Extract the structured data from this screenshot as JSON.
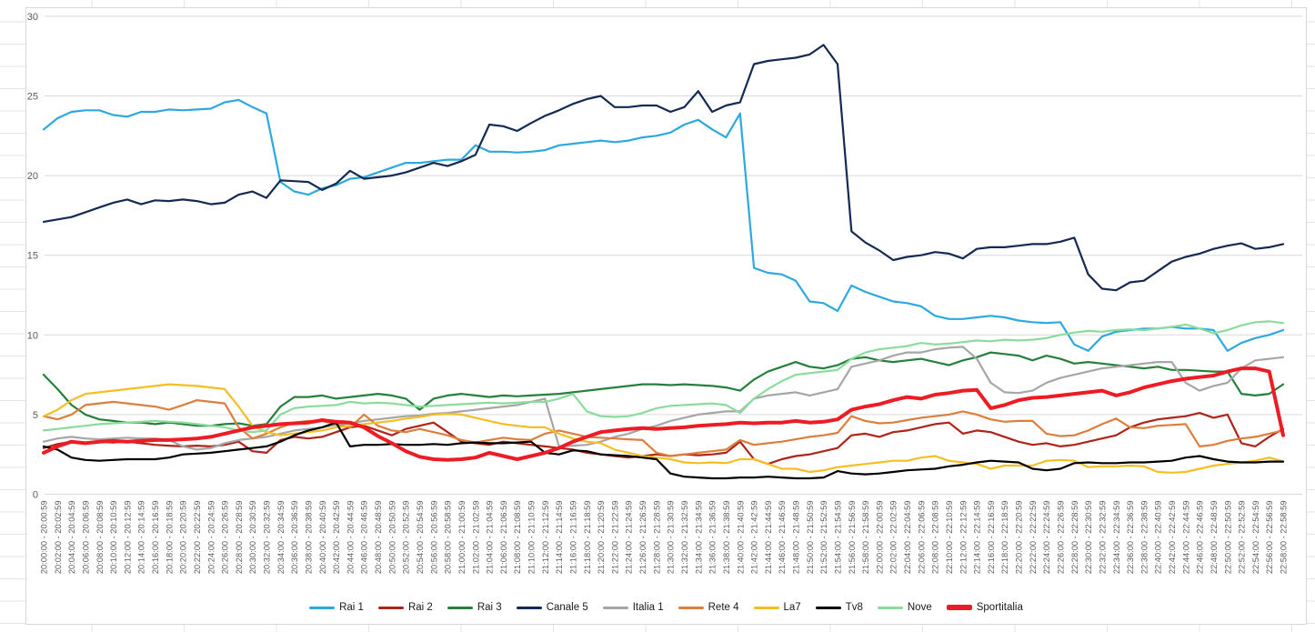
{
  "chart_data": {
    "type": "line",
    "title": "",
    "xlabel": "",
    "ylabel": "",
    "grid": "horizontal",
    "legend_position": "bottom",
    "y_axis": {
      "min": 0,
      "max": 30,
      "step": 5,
      "ticks": [
        "0",
        "5",
        "10",
        "15",
        "20",
        "25",
        "30"
      ]
    },
    "categories": [
      "20:00:00 - 20:00:59",
      "20:02:00 - 20:02:59",
      "20:04:00 - 20:04:59",
      "20:06:00 - 20:06:59",
      "20:08:00 - 20:08:59",
      "20:10:00 - 20:10:59",
      "20:12:00 - 20:12:59",
      "20:14:00 - 20:14:59",
      "20:16:00 - 20:16:59",
      "20:18:00 - 20:18:59",
      "20:20:00 - 20:20:59",
      "20:22:00 - 20:22:59",
      "20:24:00 - 20:24:59",
      "20:26:00 - 20:26:59",
      "20:28:00 - 20:28:59",
      "20:30:00 - 20:30:59",
      "20:32:00 - 20:32:59",
      "20:34:00 - 20:34:59",
      "20:36:00 - 20:36:59",
      "20:38:00 - 20:38:59",
      "20:40:00 - 20:40:59",
      "20:42:00 - 20:42:59",
      "20:44:00 - 20:44:59",
      "20:46:00 - 20:46:59",
      "20:48:00 - 20:48:59",
      "20:50:00 - 20:50:59",
      "20:52:00 - 20:52:59",
      "20:54:00 - 20:54:59",
      "20:56:00 - 20:56:59",
      "20:58:00 - 20:58:59",
      "21:00:00 - 21:00:59",
      "21:02:00 - 21:02:59",
      "21:04:00 - 21:04:59",
      "21:06:00 - 21:06:59",
      "21:08:00 - 21:08:59",
      "21:10:00 - 21:10:59",
      "21:12:00 - 21:12:59",
      "21:14:00 - 21:14:59",
      "21:16:00 - 21:16:59",
      "21:18:00 - 21:18:59",
      "21:20:00 - 21:20:59",
      "21:22:00 - 21:22:59",
      "21:24:00 - 21:24:59",
      "21:26:00 - 21:26:59",
      "21:28:00 - 21:28:59",
      "21:30:00 - 21:30:59",
      "21:32:00 - 21:32:59",
      "21:34:00 - 21:34:59",
      "21:36:00 - 21:36:59",
      "21:38:00 - 21:38:59",
      "21:40:00 - 21:40:59",
      "21:42:00 - 21:42:59",
      "21:44:00 - 21:44:59",
      "21:46:00 - 21:46:59",
      "21:48:00 - 21:48:59",
      "21:50:00 - 21:50:59",
      "21:52:00 - 21:52:59",
      "21:54:00 - 21:54:59",
      "21:56:00 - 21:56:59",
      "21:58:00 - 21:58:59",
      "22:00:00 - 22:00:59",
      "22:02:00 - 22:02:59",
      "22:04:00 - 22:04:59",
      "22:06:00 - 22:06:59",
      "22:08:00 - 22:08:59",
      "22:10:00 - 22:10:59",
      "22:12:00 - 22:12:59",
      "22:14:00 - 22:14:59",
      "22:16:00 - 22:16:59",
      "22:18:00 - 22:18:59",
      "22:20:00 - 22:20:59",
      "22:22:00 - 22:22:59",
      "22:24:00 - 22:24:59",
      "22:26:00 - 22:26:59",
      "22:28:00 - 22:28:59",
      "22:30:00 - 22:30:59",
      "22:32:00 - 22:32:59",
      "22:34:00 - 22:34:59",
      "22:36:00 - 22:36:59",
      "22:38:00 - 22:38:59",
      "22:40:00 - 22:40:59",
      "22:42:00 - 22:42:59",
      "22:44:00 - 22:44:59",
      "22:46:00 - 22:46:59",
      "22:48:00 - 22:48:59",
      "22:50:00 - 22:50:59",
      "22:52:00 - 22:52:59",
      "22:54:00 - 22:54:59",
      "22:56:00 - 22:56:59",
      "22:58:00 - 22:58:59"
    ],
    "series": [
      {
        "name": "Rai 1",
        "color": "#2DA8E0",
        "thick": false,
        "values": [
          22.9,
          23.6,
          24.0,
          24.1,
          24.1,
          23.8,
          23.7,
          24.0,
          24.0,
          24.15,
          24.1,
          24.15,
          24.2,
          24.6,
          24.75,
          24.3,
          23.9,
          19.6,
          19.0,
          18.8,
          19.2,
          19.4,
          19.8,
          19.9,
          20.2,
          20.5,
          20.8,
          20.8,
          20.9,
          21.0,
          21.0,
          21.9,
          21.5,
          21.5,
          21.45,
          21.5,
          21.6,
          21.9,
          22.0,
          22.1,
          22.2,
          22.1,
          22.2,
          22.4,
          22.5,
          22.7,
          23.2,
          23.5,
          22.9,
          22.4,
          23.9,
          14.2,
          13.9,
          13.8,
          13.4,
          12.1,
          12.0,
          11.5,
          13.1,
          12.7,
          12.4,
          12.1,
          12.0,
          11.8,
          11.2,
          11.0,
          11.0,
          11.1,
          11.2,
          11.1,
          10.9,
          10.8,
          10.75,
          10.8,
          9.4,
          9.0,
          9.9,
          10.2,
          10.3,
          10.4,
          10.4,
          10.5,
          10.4,
          10.4,
          10.3,
          9.0,
          9.5,
          9.8,
          10.0,
          10.3
        ]
      },
      {
        "name": "Rai 2",
        "color": "#AF2318",
        "thick": false,
        "values": [
          2.9,
          3.15,
          3.3,
          3.25,
          3.3,
          3.25,
          3.3,
          3.2,
          3.1,
          3.05,
          3.0,
          3.05,
          3.0,
          3.1,
          3.3,
          2.7,
          2.6,
          3.4,
          3.6,
          3.5,
          3.6,
          3.9,
          4.2,
          4.3,
          4.0,
          3.7,
          4.1,
          4.3,
          4.5,
          3.9,
          3.3,
          3.2,
          3.1,
          3.3,
          3.2,
          3.1,
          3.0,
          2.9,
          2.8,
          2.6,
          2.5,
          2.4,
          2.3,
          2.4,
          2.5,
          2.4,
          2.5,
          2.45,
          2.5,
          2.6,
          3.3,
          2.2,
          1.9,
          2.2,
          2.4,
          2.5,
          2.7,
          2.9,
          3.7,
          3.8,
          3.6,
          3.9,
          4.0,
          4.2,
          4.4,
          4.5,
          3.8,
          4.0,
          3.9,
          3.6,
          3.3,
          3.1,
          3.2,
          3.0,
          3.1,
          3.3,
          3.5,
          3.7,
          4.2,
          4.5,
          4.7,
          4.8,
          4.9,
          5.1,
          4.8,
          5.0,
          3.2,
          3.0,
          3.6,
          4.1
        ]
      },
      {
        "name": "Rai 3",
        "color": "#26803C",
        "thick": false,
        "values": [
          7.5,
          6.6,
          5.6,
          5.0,
          4.7,
          4.6,
          4.5,
          4.5,
          4.4,
          4.5,
          4.4,
          4.3,
          4.3,
          4.4,
          4.45,
          4.3,
          4.4,
          5.5,
          6.1,
          6.1,
          6.2,
          6.0,
          6.1,
          6.2,
          6.3,
          6.2,
          6.0,
          5.3,
          6.0,
          6.2,
          6.3,
          6.2,
          6.1,
          6.2,
          6.15,
          6.2,
          6.25,
          6.3,
          6.4,
          6.5,
          6.6,
          6.7,
          6.8,
          6.9,
          6.9,
          6.85,
          6.9,
          6.85,
          6.8,
          6.7,
          6.5,
          7.2,
          7.7,
          8.0,
          8.3,
          8.0,
          7.9,
          8.1,
          8.5,
          8.6,
          8.4,
          8.3,
          8.4,
          8.5,
          8.3,
          8.1,
          8.4,
          8.6,
          8.9,
          8.8,
          8.7,
          8.4,
          8.7,
          8.5,
          8.2,
          8.3,
          8.2,
          8.1,
          8.0,
          7.9,
          8.0,
          7.8,
          7.8,
          7.75,
          7.7,
          7.7,
          6.3,
          6.2,
          6.3,
          6.9
        ]
      },
      {
        "name": "Canale 5",
        "color": "#152A52",
        "thick": false,
        "values": [
          17.1,
          17.25,
          17.4,
          17.7,
          18.0,
          18.3,
          18.5,
          18.2,
          18.45,
          18.4,
          18.5,
          18.4,
          18.2,
          18.3,
          18.8,
          19.0,
          18.6,
          19.7,
          19.65,
          19.6,
          19.1,
          19.5,
          20.3,
          19.8,
          19.9,
          20.0,
          20.2,
          20.5,
          20.8,
          20.6,
          20.9,
          21.3,
          23.2,
          23.1,
          22.8,
          23.3,
          23.75,
          24.1,
          24.5,
          24.8,
          25.0,
          24.3,
          24.3,
          24.4,
          24.4,
          24.0,
          24.3,
          25.3,
          24.0,
          24.4,
          24.6,
          27.0,
          27.2,
          27.3,
          27.4,
          27.6,
          28.2,
          27.0,
          16.5,
          15.8,
          15.3,
          14.7,
          14.9,
          15.0,
          15.2,
          15.1,
          14.8,
          15.4,
          15.5,
          15.5,
          15.6,
          15.7,
          15.7,
          15.85,
          16.1,
          13.8,
          12.9,
          12.8,
          13.3,
          13.4,
          14.0,
          14.6,
          14.9,
          15.1,
          15.4,
          15.6,
          15.75,
          15.4,
          15.5,
          15.7
        ]
      },
      {
        "name": "Italia 1",
        "color": "#A6A6A6",
        "thick": false,
        "values": [
          3.3,
          3.5,
          3.6,
          3.5,
          3.45,
          3.5,
          3.55,
          3.5,
          3.5,
          3.4,
          3.0,
          2.8,
          2.9,
          3.2,
          3.4,
          3.5,
          3.6,
          3.8,
          4.0,
          4.1,
          4.2,
          4.35,
          4.45,
          4.6,
          4.7,
          4.8,
          4.9,
          4.95,
          5.05,
          5.1,
          5.2,
          5.3,
          5.4,
          5.5,
          5.6,
          5.8,
          6.0,
          3.0,
          3.05,
          3.1,
          3.3,
          3.6,
          3.8,
          4.1,
          4.3,
          4.6,
          4.8,
          5.0,
          5.1,
          5.2,
          5.2,
          6.0,
          6.2,
          6.3,
          6.4,
          6.2,
          6.4,
          6.6,
          8.0,
          8.2,
          8.4,
          8.7,
          8.9,
          8.9,
          9.1,
          9.2,
          9.25,
          8.5,
          7.0,
          6.4,
          6.35,
          6.5,
          7.0,
          7.3,
          7.5,
          7.7,
          7.9,
          8.0,
          8.1,
          8.2,
          8.3,
          8.3,
          7.0,
          6.5,
          6.8,
          7.0,
          7.9,
          8.4,
          8.5,
          8.6
        ]
      },
      {
        "name": "Rete 4",
        "color": "#DD7E3D",
        "thick": false,
        "values": [
          4.9,
          4.7,
          5.0,
          5.6,
          5.7,
          5.8,
          5.7,
          5.6,
          5.5,
          5.3,
          5.6,
          5.9,
          5.8,
          5.7,
          4.2,
          3.5,
          3.8,
          4.2,
          4.5,
          4.6,
          4.6,
          4.4,
          4.2,
          5.0,
          4.3,
          4.0,
          3.9,
          4.1,
          3.9,
          3.7,
          3.4,
          3.25,
          3.4,
          3.55,
          3.45,
          3.4,
          3.8,
          4.0,
          3.8,
          3.6,
          3.55,
          3.5,
          3.45,
          3.4,
          2.6,
          2.4,
          2.5,
          2.6,
          2.7,
          2.8,
          3.4,
          3.1,
          3.2,
          3.3,
          3.45,
          3.6,
          3.7,
          3.85,
          4.9,
          4.6,
          4.45,
          4.5,
          4.65,
          4.8,
          4.9,
          5.0,
          5.2,
          5.0,
          4.7,
          4.55,
          4.6,
          4.6,
          3.8,
          3.65,
          3.7,
          4.0,
          4.4,
          4.75,
          4.2,
          4.15,
          4.3,
          4.35,
          4.4,
          3.0,
          3.1,
          3.35,
          3.5,
          3.6,
          3.8,
          4.0
        ]
      },
      {
        "name": "La7",
        "color": "#F5BE25",
        "thick": false,
        "values": [
          4.9,
          5.3,
          5.9,
          6.3,
          6.4,
          6.5,
          6.6,
          6.7,
          6.8,
          6.9,
          6.85,
          6.8,
          6.7,
          6.6,
          5.5,
          4.3,
          3.9,
          3.7,
          3.8,
          3.9,
          4.0,
          4.2,
          4.3,
          4.4,
          4.5,
          4.6,
          4.75,
          4.85,
          5.0,
          5.05,
          5.0,
          4.8,
          4.6,
          4.4,
          4.3,
          4.2,
          4.2,
          3.8,
          3.5,
          3.3,
          3.2,
          2.8,
          2.6,
          2.4,
          2.3,
          2.2,
          2.0,
          1.95,
          2.0,
          1.95,
          2.2,
          2.2,
          1.9,
          1.6,
          1.6,
          1.4,
          1.5,
          1.7,
          1.8,
          1.9,
          2.0,
          2.1,
          2.1,
          2.3,
          2.4,
          2.1,
          2.0,
          1.9,
          1.6,
          1.8,
          1.8,
          1.8,
          2.1,
          2.15,
          2.1,
          1.7,
          1.75,
          1.75,
          1.8,
          1.75,
          1.4,
          1.35,
          1.4,
          1.6,
          1.8,
          1.9,
          2.0,
          2.1,
          2.3,
          2.05
        ]
      },
      {
        "name": "Tv8",
        "color": "#000000",
        "thick": false,
        "values": [
          3.0,
          2.8,
          2.3,
          2.15,
          2.1,
          2.15,
          2.2,
          2.2,
          2.2,
          2.3,
          2.5,
          2.55,
          2.6,
          2.7,
          2.8,
          2.9,
          3.0,
          3.3,
          3.7,
          4.0,
          4.2,
          4.5,
          3.0,
          3.1,
          3.1,
          3.15,
          3.1,
          3.1,
          3.15,
          3.1,
          3.2,
          3.25,
          3.2,
          3.2,
          3.25,
          3.3,
          2.6,
          2.5,
          2.75,
          2.7,
          2.5,
          2.45,
          2.4,
          2.3,
          2.2,
          1.3,
          1.1,
          1.05,
          1.0,
          1.0,
          1.05,
          1.05,
          1.1,
          1.05,
          1.0,
          1.0,
          1.05,
          1.45,
          1.3,
          1.25,
          1.3,
          1.4,
          1.5,
          1.55,
          1.6,
          1.75,
          1.85,
          2.0,
          2.1,
          2.05,
          2.0,
          1.6,
          1.5,
          1.6,
          1.95,
          2.0,
          1.95,
          1.95,
          2.0,
          2.0,
          2.05,
          2.1,
          2.3,
          2.4,
          2.2,
          2.05,
          2.0,
          2.0,
          2.05,
          2.05
        ]
      },
      {
        "name": "Nove",
        "color": "#8BDC9C",
        "thick": false,
        "values": [
          4.0,
          4.1,
          4.2,
          4.3,
          4.4,
          4.45,
          4.5,
          4.55,
          4.6,
          4.55,
          4.5,
          4.4,
          4.3,
          4.2,
          4.0,
          3.9,
          4.0,
          5.0,
          5.4,
          5.5,
          5.55,
          5.6,
          5.8,
          5.7,
          5.75,
          5.7,
          5.6,
          5.5,
          5.55,
          5.6,
          5.65,
          5.7,
          5.75,
          5.7,
          5.75,
          5.8,
          5.8,
          6.0,
          6.3,
          5.2,
          4.9,
          4.85,
          4.9,
          5.1,
          5.4,
          5.55,
          5.6,
          5.65,
          5.7,
          5.6,
          5.1,
          6.0,
          6.6,
          7.1,
          7.5,
          7.6,
          7.7,
          7.8,
          8.5,
          8.9,
          9.1,
          9.2,
          9.3,
          9.5,
          9.4,
          9.45,
          9.55,
          9.65,
          9.6,
          9.7,
          9.65,
          9.7,
          9.8,
          10.0,
          10.15,
          10.25,
          10.2,
          10.3,
          10.35,
          10.3,
          10.4,
          10.5,
          10.65,
          10.4,
          10.1,
          10.3,
          10.6,
          10.8,
          10.85,
          10.75
        ]
      },
      {
        "name": "Sportitalia",
        "color": "#ED1C24",
        "thick": true,
        "values": [
          2.6,
          3.0,
          3.3,
          3.2,
          3.3,
          3.35,
          3.3,
          3.35,
          3.4,
          3.4,
          3.45,
          3.5,
          3.6,
          3.8,
          4.0,
          4.2,
          4.3,
          4.4,
          4.45,
          4.5,
          4.65,
          4.55,
          4.5,
          4.2,
          3.65,
          3.2,
          2.7,
          2.35,
          2.2,
          2.15,
          2.2,
          2.3,
          2.6,
          2.4,
          2.2,
          2.4,
          2.6,
          2.9,
          3.3,
          3.6,
          3.9,
          4.0,
          4.1,
          4.15,
          4.1,
          4.15,
          4.2,
          4.3,
          4.35,
          4.4,
          4.5,
          4.45,
          4.5,
          4.5,
          4.6,
          4.5,
          4.55,
          4.7,
          5.3,
          5.5,
          5.65,
          5.9,
          6.1,
          6.0,
          6.25,
          6.35,
          6.5,
          6.55,
          5.4,
          5.6,
          5.9,
          6.05,
          6.1,
          6.2,
          6.3,
          6.4,
          6.5,
          6.2,
          6.4,
          6.7,
          6.9,
          7.1,
          7.25,
          7.35,
          7.45,
          7.7,
          7.9,
          7.9,
          7.7,
          3.7
        ]
      }
    ]
  },
  "style": {
    "grid_color": "#D9D9D9",
    "axis_text_color": "#595959",
    "legend_text_color": "#1A1A1A",
    "chart_border_color": "#D7D7D7",
    "sheet_grid_color": "#E4E4E4",
    "background": "#FFFFFF"
  }
}
